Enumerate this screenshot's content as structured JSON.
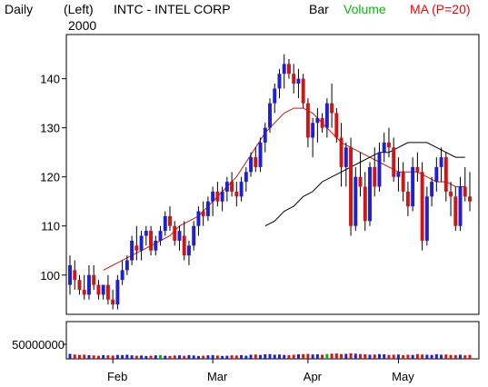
{
  "header": {
    "period": "Daily",
    "scale_side": "(Left)",
    "year": "2000",
    "symbol": "INTC - INTEL CORP",
    "chart_style": "Bar",
    "volume_label": "Volume",
    "ma_label": "MA (P=20)"
  },
  "colors": {
    "up": "#1f1fd6",
    "down": "#d11414",
    "ma_short": "#d11414",
    "ma_long": "#000000",
    "volume_text": "#00c000",
    "ma_text": "#ff0000",
    "vol_green": "#00b400"
  },
  "chart_data": [
    {
      "type": "candlestick",
      "title": "INTC - INTEL CORP",
      "ylim": [
        92,
        149
      ],
      "y_ticks": [
        100,
        110,
        120,
        130,
        140
      ],
      "x_labels": [
        "Feb",
        "Mar",
        "Apr",
        "May"
      ],
      "grid": false,
      "ohlc": [
        [
          98,
          104,
          96,
          102
        ],
        [
          101,
          103,
          97,
          99
        ],
        [
          99,
          100,
          96,
          97
        ],
        [
          97,
          100,
          95,
          96
        ],
        [
          96,
          102,
          95,
          100
        ],
        [
          100,
          102,
          97,
          98
        ],
        [
          98,
          99,
          95,
          96
        ],
        [
          96,
          98,
          95,
          98
        ],
        [
          98,
          100,
          94,
          95
        ],
        [
          95,
          97,
          93,
          94
        ],
        [
          94,
          100,
          93,
          99
        ],
        [
          99,
          103,
          98,
          101
        ],
        [
          101,
          104,
          100,
          103
        ],
        [
          103,
          108,
          102,
          107
        ],
        [
          106,
          110,
          103,
          105
        ],
        [
          105,
          109,
          103,
          108
        ],
        [
          108,
          110,
          106,
          109
        ],
        [
          109,
          110,
          104,
          105
        ],
        [
          105,
          108,
          104,
          107
        ],
        [
          107,
          110,
          106,
          109
        ],
        [
          109,
          113,
          108,
          112
        ],
        [
          112,
          114,
          109,
          110
        ],
        [
          110,
          111,
          106,
          107
        ],
        [
          107,
          110,
          105,
          109
        ],
        [
          108,
          111,
          103,
          104
        ],
        [
          104,
          107,
          102,
          106
        ],
        [
          106,
          111,
          105,
          110
        ],
        [
          110,
          114,
          108,
          113
        ],
        [
          113,
          115,
          110,
          112
        ],
        [
          112,
          116,
          111,
          115
        ],
        [
          115,
          118,
          112,
          117
        ],
        [
          117,
          119,
          114,
          115
        ],
        [
          115,
          118,
          113,
          117
        ],
        [
          117,
          120,
          115,
          119
        ],
        [
          119,
          121,
          116,
          117
        ],
        [
          117,
          119,
          114,
          116
        ],
        [
          116,
          120,
          115,
          119
        ],
        [
          119,
          122,
          117,
          121
        ],
        [
          121,
          125,
          120,
          124
        ],
        [
          124,
          126,
          121,
          122
        ],
        [
          122,
          128,
          121,
          127
        ],
        [
          127,
          131,
          125,
          130
        ],
        [
          130,
          136,
          129,
          135
        ],
        [
          135,
          139,
          133,
          138
        ],
        [
          138,
          142,
          136,
          141
        ],
        [
          141,
          145,
          138,
          143
        ],
        [
          143,
          144,
          140,
          141
        ],
        [
          141,
          143,
          137,
          139
        ],
        [
          139,
          142,
          136,
          140
        ],
        [
          140,
          141,
          134,
          135
        ],
        [
          135,
          136,
          126,
          128
        ],
        [
          128,
          132,
          124,
          131
        ],
        [
          131,
          134,
          127,
          132
        ],
        [
          132,
          133,
          129,
          130
        ],
        [
          130,
          136,
          128,
          135
        ],
        [
          135,
          139,
          130,
          133
        ],
        [
          133,
          134,
          127,
          128
        ],
        [
          128,
          131,
          118,
          122
        ],
        [
          122,
          127,
          118,
          126
        ],
        [
          126,
          128,
          108,
          110
        ],
        [
          110,
          122,
          109,
          120
        ],
        [
          120,
          125,
          116,
          118
        ],
        [
          118,
          121,
          109,
          111
        ],
        [
          111,
          123,
          110,
          122
        ],
        [
          122,
          126,
          116,
          118
        ],
        [
          118,
          127,
          117,
          125
        ],
        [
          125,
          129,
          123,
          127
        ],
        [
          127,
          130,
          124,
          126
        ],
        [
          126,
          128,
          119,
          120
        ],
        [
          120,
          124,
          117,
          121
        ],
        [
          121,
          123,
          115,
          117
        ],
        [
          117,
          119,
          112,
          114
        ],
        [
          114,
          124,
          113,
          122
        ],
        [
          122,
          125,
          119,
          121
        ],
        [
          121,
          123,
          105,
          107
        ],
        [
          107,
          118,
          106,
          116
        ],
        [
          116,
          120,
          114,
          119
        ],
        [
          119,
          124,
          117,
          122
        ],
        [
          122,
          126,
          119,
          124
        ],
        [
          124,
          125,
          115,
          117
        ],
        [
          117,
          119,
          112,
          116
        ],
        [
          116,
          118,
          109,
          110
        ],
        [
          110,
          120,
          109,
          118
        ],
        [
          118,
          122,
          115,
          116
        ],
        [
          116,
          121,
          113,
          115
        ]
      ],
      "ma_short": [
        101,
        102,
        103,
        104,
        105,
        106,
        107,
        108,
        110,
        111,
        112,
        114,
        116,
        118,
        120,
        123,
        126,
        129,
        131,
        133,
        134,
        134,
        133,
        131,
        129,
        127,
        126,
        125,
        124,
        123,
        122,
        121,
        121,
        121,
        120,
        119,
        119,
        118,
        118
      ],
      "ma_long": [
        110,
        111,
        113,
        114,
        116,
        117,
        119,
        120,
        121,
        122,
        123,
        124,
        125,
        125,
        126,
        127,
        127,
        127,
        126,
        125,
        124,
        124
      ]
    },
    {
      "type": "bar",
      "title": "Volume",
      "y_ticks": [
        50000000
      ],
      "ylim": [
        0,
        60000000
      ],
      "values": [
        48,
        42,
        38,
        40,
        35,
        33,
        30,
        36,
        34,
        32,
        38,
        36,
        40,
        34,
        30,
        32,
        28,
        30,
        34,
        36,
        30,
        28,
        32,
        34,
        30,
        36,
        32,
        28,
        30,
        34,
        36,
        32,
        28,
        30,
        34,
        32,
        36,
        30,
        40,
        42,
        38,
        44,
        46,
        40,
        42,
        38,
        36,
        40,
        44,
        46,
        48,
        42,
        44,
        40,
        46,
        50,
        52,
        46,
        48,
        54,
        50,
        46,
        44,
        40,
        42,
        46,
        44,
        38,
        40,
        42,
        36,
        40,
        38,
        46,
        42,
        40,
        38,
        44,
        40,
        42,
        38,
        36,
        40,
        34,
        38
      ],
      "highlight": [
        19,
        54
      ]
    }
  ]
}
